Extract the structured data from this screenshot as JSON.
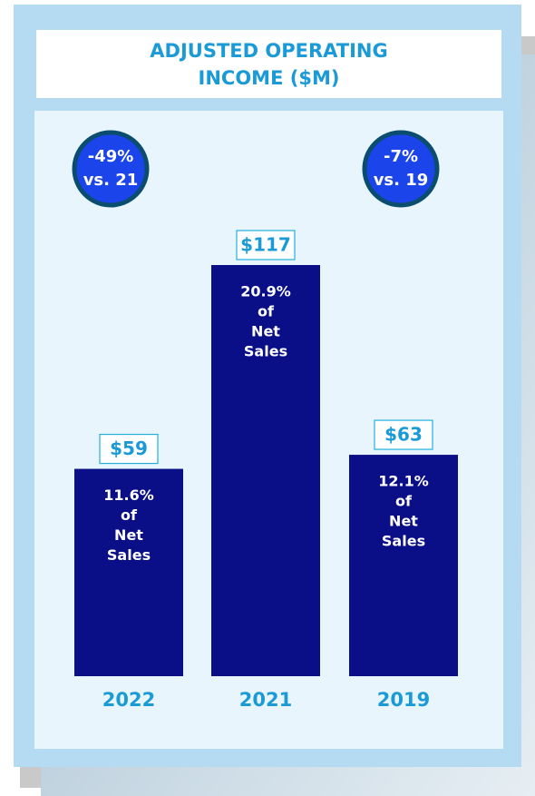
{
  "chart_data": {
    "type": "bar",
    "title": "ADJUSTED OPERATING INCOME ($M)",
    "categories": [
      "2022",
      "2021",
      "2019"
    ],
    "values": [
      59,
      117,
      63
    ],
    "value_labels": [
      "$59",
      "$117",
      "$63"
    ],
    "color": "#0a0f87",
    "bar_notes": [
      [
        "11.6%",
        "of",
        "Net",
        "Sales"
      ],
      [
        "20.9%",
        "of",
        "Net",
        "Sales"
      ],
      [
        "12.1%",
        "of",
        "Net",
        "Sales"
      ]
    ],
    "badges": [
      [
        "-49%",
        "vs. 21"
      ],
      [
        "-7%",
        "vs. 19"
      ]
    ]
  }
}
